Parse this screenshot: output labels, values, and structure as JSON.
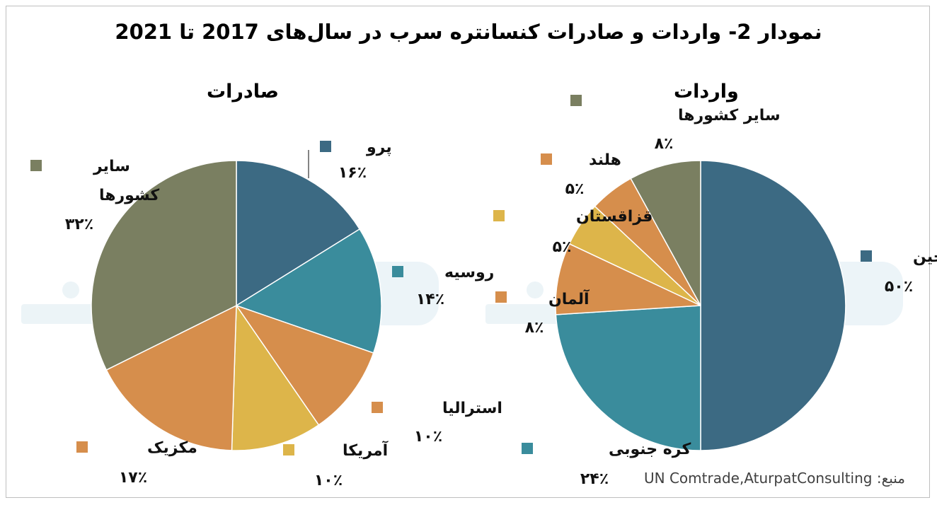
{
  "title": "نمودار 2- واردات و صادرات کنسانتره سرب در سال‌های 2017 تا 2021",
  "source": {
    "label": "منبع:",
    "text": "UN Comtrade,AturpatConsulting"
  },
  "colors": {
    "dark_blue": "#3C6A83",
    "teal": "#3A8C9C",
    "orange": "#D68E4C",
    "yellow": "#DDB54A",
    "olive": "#7A7F61",
    "watermark": "#EAF3F7"
  },
  "chart_data": [
    {
      "type": "pie",
      "title": "صادرات",
      "slices": [
        {
          "name": "پرو",
          "value": 16,
          "value_label": "۱۶٪",
          "color": "#3C6A83"
        },
        {
          "name": "روسیه",
          "value": 14,
          "value_label": "۱۴٪",
          "color": "#3A8C9C"
        },
        {
          "name": "استرالیا",
          "value": 10,
          "value_label": "۱۰٪",
          "color": "#D68E4C"
        },
        {
          "name": "آمریکا",
          "value": 10,
          "value_label": "۱۰٪",
          "color": "#DDB54A"
        },
        {
          "name": "مکزیک",
          "value": 17,
          "value_label": "۱۷٪",
          "color": "#D68E4C"
        },
        {
          "name": "سایر کشورها",
          "value": 32,
          "value_label": "۳۲٪",
          "color": "#7A7F61"
        }
      ]
    },
    {
      "type": "pie",
      "title": "واردات",
      "slices": [
        {
          "name": "چین",
          "value": 50,
          "value_label": "۵۰٪",
          "color": "#3C6A83"
        },
        {
          "name": "کره جنوبی",
          "value": 24,
          "value_label": "۲۴٪",
          "color": "#3A8C9C"
        },
        {
          "name": "آلمان",
          "value": 8,
          "value_label": "۸٪",
          "color": "#D68E4C"
        },
        {
          "name": "قزاقستان",
          "value": 5,
          "value_label": "۵٪",
          "color": "#DDB54A"
        },
        {
          "name": "هلند",
          "value": 5,
          "value_label": "۵٪",
          "color": "#D68E4C"
        },
        {
          "name": "سایر کشورها",
          "value": 8,
          "value_label": "۸٪",
          "color": "#7A7F61"
        }
      ]
    }
  ]
}
